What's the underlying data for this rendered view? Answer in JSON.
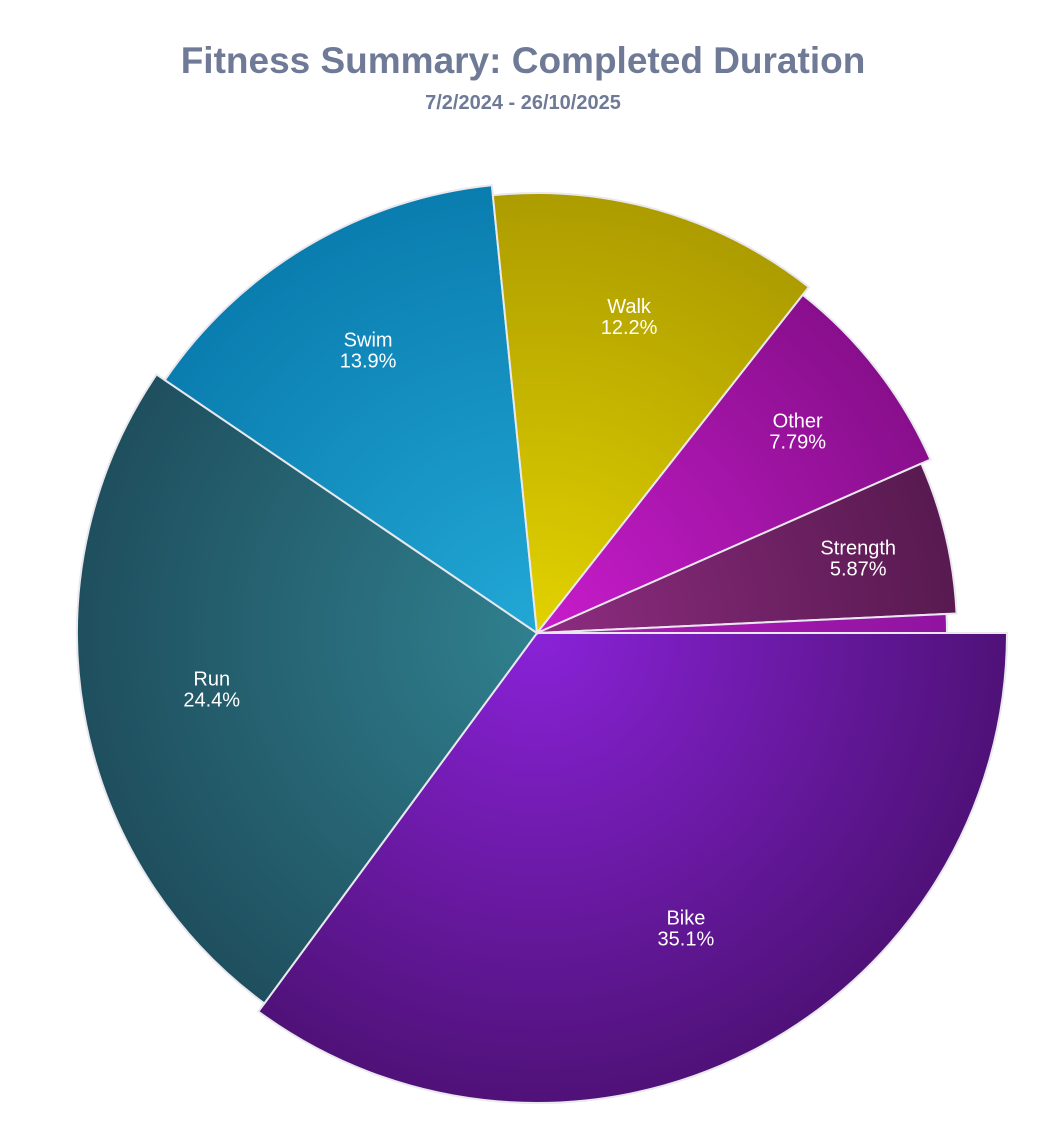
{
  "chart_data": {
    "type": "pie",
    "title": "Fitness Summary: Completed Duration",
    "subtitle": "7/2/2024 - 26/10/2025",
    "slices": [
      {
        "label": "Bike",
        "value": 35.1,
        "value_label": "35.1%",
        "color_light": "#8a22d8",
        "color_dark": "#4f1278"
      },
      {
        "label": "Run",
        "value": 24.4,
        "value_label": "24.4%",
        "color_light": "#30808f",
        "color_dark": "#1f4f5e"
      },
      {
        "label": "Swim",
        "value": 13.9,
        "value_label": "13.9%",
        "color_light": "#22a8d6",
        "color_dark": "#0a7daf"
      },
      {
        "label": "Walk",
        "value": 12.2,
        "value_label": "12.2%",
        "color_light": "#e2d200",
        "color_dark": "#ad9c00"
      },
      {
        "label": "Other",
        "value": 7.79,
        "value_label": "7.79%",
        "color_light": "#c81ccc",
        "color_dark": "#880f8c"
      },
      {
        "label": "Strength",
        "value": 5.87,
        "value_label": "5.87%",
        "color_light": "#8e2c80",
        "color_dark": "#581a50"
      },
      {
        "label": "",
        "value": 0.74,
        "value_label": "",
        "color_light": "#b01cbc",
        "color_dark": "#9014a0"
      }
    ],
    "start_angle": "3 o'clock",
    "direction": "clockwise",
    "legend": "none"
  }
}
